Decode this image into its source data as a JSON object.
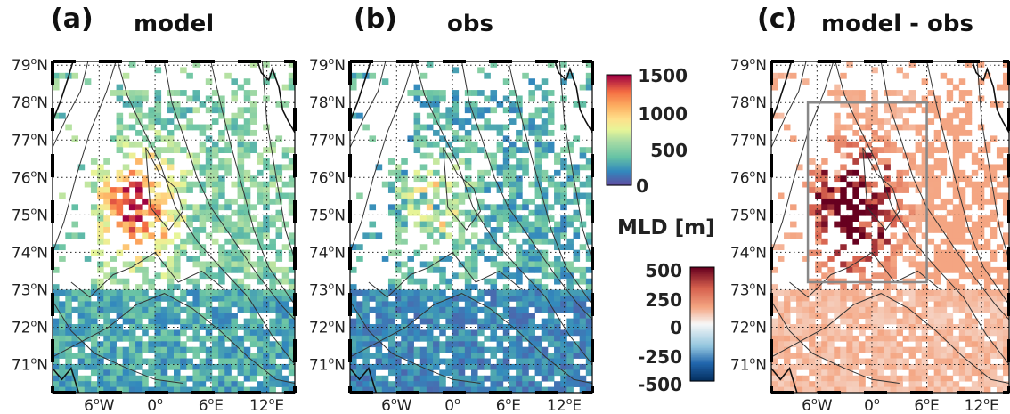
{
  "chart_data": [
    {
      "type": "heatmap",
      "panel_label": "(a)",
      "title": "model",
      "lat_ticks": [
        "79°N",
        "78°N",
        "77°N",
        "76°N",
        "75°N",
        "74°N",
        "73°N",
        "72°N",
        "71°N"
      ],
      "lon_ticks": [
        "6°W",
        "0°",
        "6°E",
        "12°E"
      ],
      "colorbar": "mld",
      "field": "model"
    },
    {
      "type": "heatmap",
      "panel_label": "(b)",
      "title": "obs",
      "lat_ticks": [
        "79°N",
        "78°N",
        "77°N",
        "76°N",
        "75°N",
        "74°N",
        "73°N",
        "72°N",
        "71°N"
      ],
      "lon_ticks": [
        "6°W",
        "0°",
        "6°E",
        "12°E"
      ],
      "colorbar": "mld",
      "field": "obs"
    },
    {
      "type": "heatmap",
      "panel_label": "(c)",
      "title": "model - obs",
      "lat_ticks": [
        "79°N",
        "78°N",
        "77°N",
        "76°N",
        "75°N",
        "74°N",
        "73°N",
        "72°N",
        "71°N"
      ],
      "lon_ticks": [
        "6°W",
        "0°",
        "6°E",
        "12°E"
      ],
      "colorbar": "diff",
      "field": "diff",
      "box": {
        "lon": [
          -7,
          6
        ],
        "lat": [
          73.2,
          78
        ]
      }
    }
  ],
  "colorbars": {
    "mld": {
      "ticks": [
        "1500",
        "1000",
        "500",
        "0"
      ],
      "range": [
        0,
        1500
      ]
    },
    "diff": {
      "ticks": [
        "500",
        "250",
        "0",
        "-250",
        "-500"
      ],
      "range": [
        -500,
        500
      ]
    },
    "label": "MLD [m]"
  }
}
